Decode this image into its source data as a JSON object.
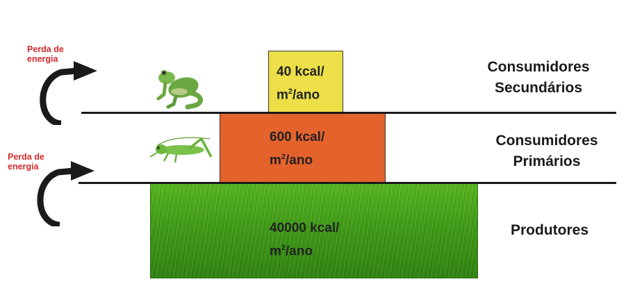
{
  "levels": {
    "secondary": {
      "energy_value": "40 kcal/",
      "energy_unit_m": "m",
      "energy_unit_exp": "2",
      "energy_unit_rest": "/ano",
      "label_line1": "Consumidores",
      "label_line2": "Secundários",
      "organism_icon": "frog-icon",
      "color": "#ecdf48"
    },
    "primary": {
      "energy_value": "600 kcal/",
      "energy_unit_m": "m",
      "energy_unit_exp": "2",
      "energy_unit_rest": "/ano",
      "label_line1": "Consumidores",
      "label_line2": "Primários",
      "organism_icon": "grasshopper-icon",
      "color": "#e4622c"
    },
    "producers": {
      "energy_value": "40000 kcal/",
      "energy_unit_m": "m",
      "energy_unit_exp": "2",
      "energy_unit_rest": "/ano",
      "label": "Produtores",
      "fill_icon": "grass-icon",
      "color": "#3f9a16"
    }
  },
  "energy_loss": [
    {
      "line1": "Perda de",
      "line2": "energia",
      "icon": "curved-arrow-icon"
    },
    {
      "line1": "Perda de",
      "line2": "energia",
      "icon": "curved-arrow-icon"
    }
  ],
  "colors": {
    "loss_text": "#d42a2a",
    "line": "#1a1a1a"
  }
}
